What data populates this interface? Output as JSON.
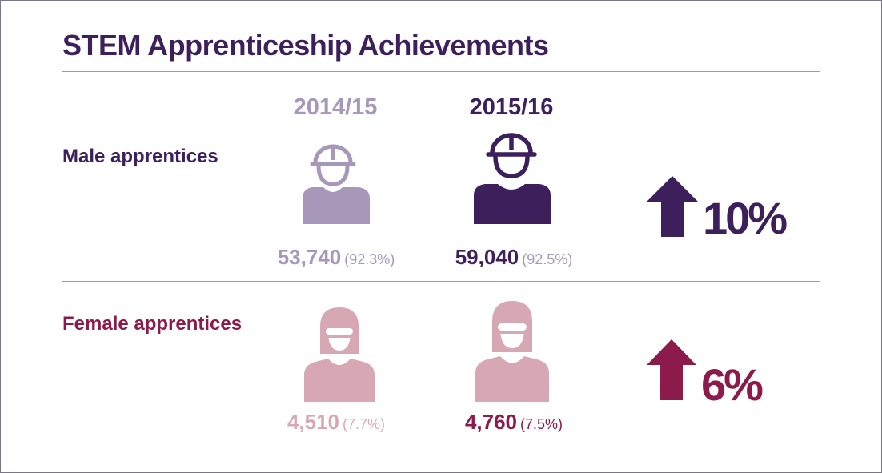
{
  "title": "STEM Apprenticeship Achievements",
  "colors": {
    "title": "#3d1f5c",
    "male_2015": "#3d1f5c",
    "male_2014": "#a797b8",
    "female_2015": "#8c1a4b",
    "female_2014": "#d7a8b4",
    "muted_text": "#a797b8",
    "rule": "#9f9aa8"
  },
  "icons": {
    "male": "hard-hat-worker-icon",
    "female": "safety-goggles-worker-icon",
    "increase": "arrow-up-icon"
  },
  "chart_data": {
    "type": "table",
    "title": "STEM Apprenticeship Achievements",
    "columns": [
      "2014/15",
      "2015/16"
    ],
    "rows": [
      {
        "label": "Male apprentices",
        "values": [
          {
            "count": "53,740",
            "share": "(92.3%)"
          },
          {
            "count": "59,040",
            "share": "(92.5%)"
          }
        ],
        "change": "10%"
      },
      {
        "label": "Female apprentices",
        "values": [
          {
            "count": "4,510",
            "share": "(7.7%)"
          },
          {
            "count": "4,760",
            "share": "(7.5%)"
          }
        ],
        "change": "6%"
      }
    ]
  }
}
